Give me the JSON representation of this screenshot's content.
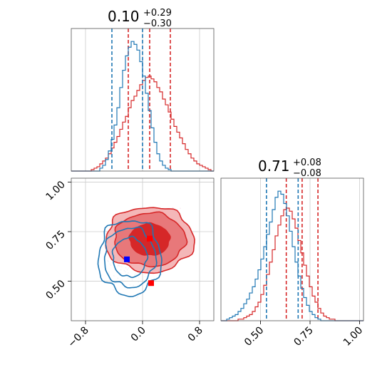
{
  "colors": {
    "red": "#d62728",
    "blue": "#1f77b4",
    "red_fill_dark": "#d62728",
    "red_fill_mid": "#e8787a",
    "red_fill_light": "#f4b7b8",
    "marker_red": "#ff0000",
    "marker_blue": "#0000ff",
    "grid": "#cccccc"
  },
  "chart_data": [
    {
      "type": "histogram",
      "panel": "top-left",
      "parameter_range": [
        -1.0,
        1.0
      ],
      "title": {
        "value": "0.10",
        "upper": "+0.29",
        "lower": "−0.30"
      },
      "bin_edges_start": -1.0,
      "bin_width": 0.04,
      "series": [
        {
          "color": "red",
          "counts": [
            0,
            0,
            0,
            0,
            0,
            0,
            0,
            1,
            2,
            3,
            5,
            7,
            9,
            12,
            16,
            20,
            24,
            29,
            34,
            38,
            44,
            49,
            52,
            56,
            60,
            63,
            65,
            66,
            64,
            62,
            58,
            55,
            50,
            46,
            41,
            36,
            31,
            27,
            23,
            19,
            15,
            12,
            9,
            7,
            5,
            4,
            3,
            2,
            1,
            0
          ],
          "quantile_lines": [
            -0.2,
            0.1,
            0.39
          ]
        },
        {
          "color": "blue",
          "counts": [
            0,
            0,
            0,
            0,
            0,
            0,
            0,
            0,
            0,
            0,
            2,
            4,
            8,
            14,
            22,
            32,
            44,
            58,
            70,
            80,
            86,
            90,
            88,
            84,
            76,
            66,
            54,
            42,
            30,
            20,
            12,
            7,
            4,
            2,
            1,
            0,
            0,
            0,
            0,
            0,
            0,
            0,
            0,
            0,
            0,
            0,
            0,
            0,
            0,
            0
          ],
          "quantile_lines": [
            -0.43,
            0.0
          ]
        }
      ],
      "xticks": [
        -0.8,
        0.0,
        0.8
      ]
    },
    {
      "type": "histogram",
      "panel": "bottom-right",
      "parameter_range": [
        0.3,
        1.02
      ],
      "title": {
        "value": "0.71",
        "upper": "+0.08",
        "lower": "−0.08"
      },
      "bin_edges_start": 0.3,
      "bin_width": 0.0144,
      "series": [
        {
          "color": "red",
          "counts": [
            0,
            0,
            0,
            0,
            0,
            0,
            1,
            1,
            2,
            3,
            4,
            6,
            9,
            12,
            17,
            23,
            30,
            38,
            46,
            55,
            62,
            68,
            72,
            73,
            71,
            66,
            60,
            52,
            44,
            36,
            29,
            22,
            16,
            12,
            8,
            5,
            3,
            2,
            1,
            1,
            0,
            0,
            0,
            0,
            0,
            0,
            0,
            0,
            0,
            0
          ],
          "quantile_lines": [
            0.63,
            0.71,
            0.79
          ]
        },
        {
          "color": "blue",
          "counts": [
            0,
            0,
            1,
            2,
            3,
            4,
            6,
            8,
            11,
            14,
            18,
            22,
            27,
            33,
            40,
            48,
            56,
            64,
            72,
            80,
            84,
            82,
            76,
            68,
            58,
            48,
            38,
            29,
            21,
            15,
            10,
            6,
            4,
            2,
            1,
            0,
            0,
            0,
            0,
            0,
            0,
            0,
            0,
            0,
            0,
            0,
            0,
            0,
            0,
            0
          ],
          "quantile_lines": [
            0.53,
            0.69
          ]
        }
      ],
      "xticks": [
        0.5,
        0.75,
        1.0
      ],
      "xticklabels": [
        "0.50",
        "0.75",
        "1.00"
      ]
    },
    {
      "type": "contour",
      "panel": "bottom-left",
      "x_range": [
        -1.0,
        1.0
      ],
      "y_range": [
        0.3,
        1.02
      ],
      "xticks": [
        -0.8,
        0.0,
        0.8
      ],
      "xticklabels": [
        "−0.8",
        "0.0",
        "0.8"
      ],
      "yticks": [
        0.5,
        0.75,
        1.0
      ],
      "yticklabels": [
        "0.50",
        "0.75",
        "1.00"
      ],
      "series": [
        {
          "color": "red",
          "filled": true,
          "center": [
            0.1,
            0.71
          ],
          "levels": [
            {
              "rx": 0.28,
              "ry": 0.08
            },
            {
              "rx": 0.5,
              "ry": 0.135
            },
            {
              "rx": 0.62,
              "ry": 0.165
            }
          ]
        },
        {
          "color": "blue",
          "filled": false,
          "center": [
            -0.18,
            0.62
          ],
          "levels": [
            {
              "rx": 0.24,
              "ry": 0.1
            },
            {
              "rx": 0.36,
              "ry": 0.15
            },
            {
              "rx": 0.44,
              "ry": 0.19
            }
          ]
        }
      ],
      "markers": [
        {
          "color": "marker_red",
          "x": 0.1,
          "y": 0.715
        },
        {
          "color": "marker_red",
          "x": 0.12,
          "y": 0.49
        },
        {
          "color": "marker_blue",
          "x": -0.22,
          "y": 0.61
        }
      ]
    }
  ]
}
